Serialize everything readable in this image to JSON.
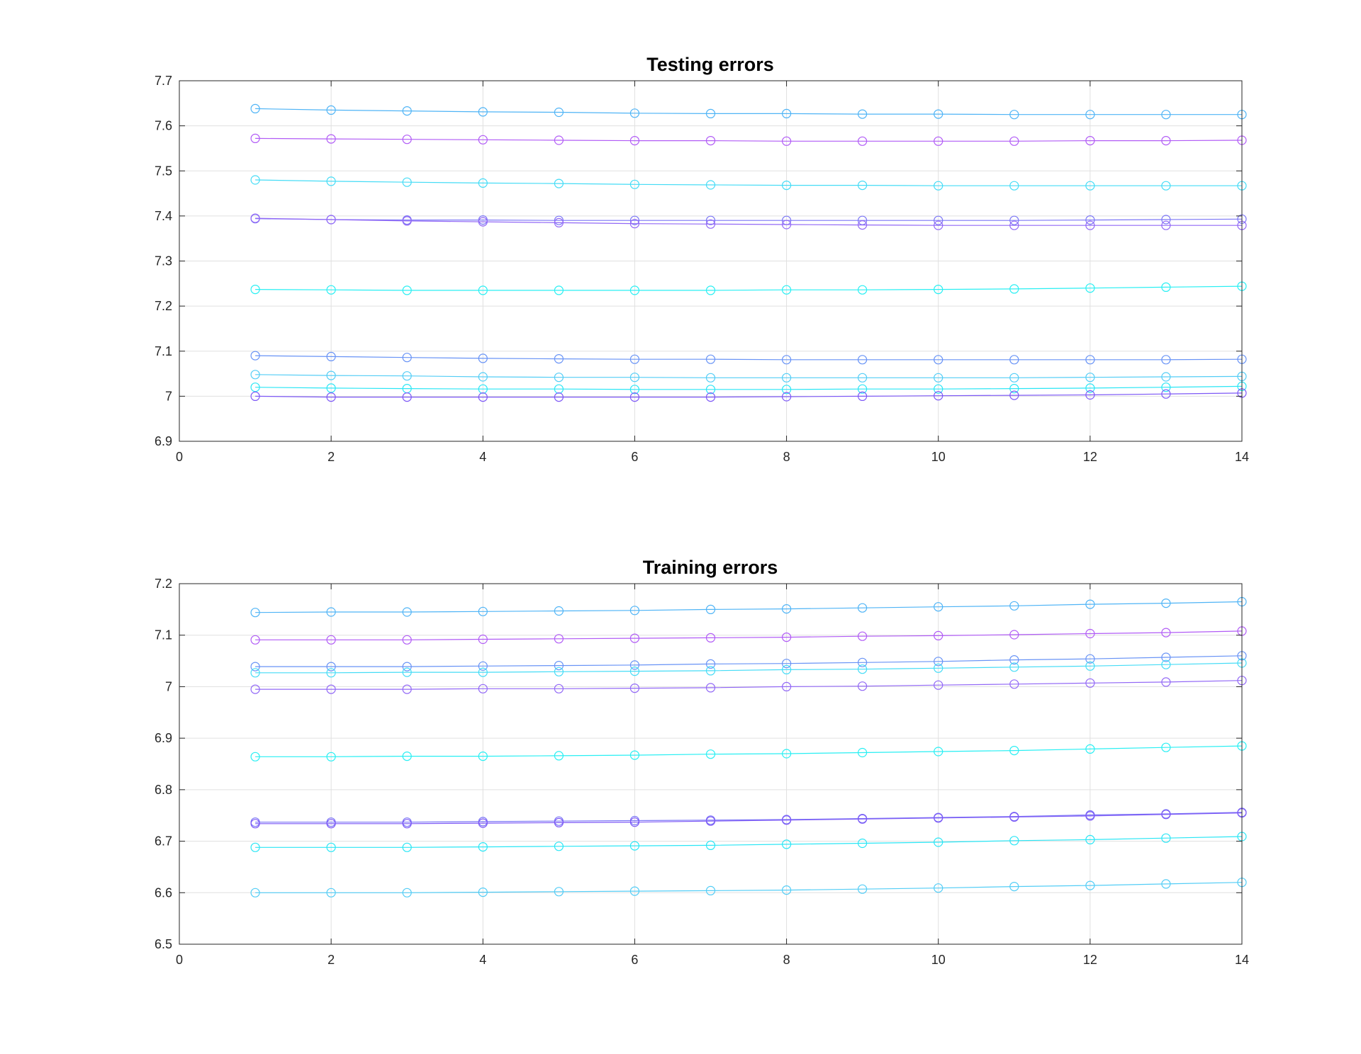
{
  "colors": {
    "background": "#ffffff",
    "axes": "#262626",
    "grid": "#e0e0e0",
    "series_colors": [
      "#4fb4f6",
      "#b15bf6",
      "#45dcf6",
      "#7b76f6",
      "#9268f6",
      "#28eff3",
      "#6893f6",
      "#53cdf6",
      "#2ae6f5",
      "#7d58f6"
    ]
  },
  "chart_data": [
    {
      "type": "line",
      "title": "Testing errors",
      "xlabel": "",
      "ylabel": "",
      "xlim": [
        0,
        14
      ],
      "ylim": [
        6.9,
        7.7
      ],
      "xticks": [
        0,
        2,
        4,
        6,
        8,
        10,
        12,
        14
      ],
      "yticks": [
        6.9,
        7,
        7.1,
        7.2,
        7.3,
        7.4,
        7.5,
        7.6,
        7.7
      ],
      "ytick_labels": [
        "6.9",
        "7",
        "7.1",
        "7.2",
        "7.3",
        "7.4",
        "7.5",
        "7.6",
        "7.7"
      ],
      "grid": true,
      "marker": "circle",
      "x": [
        1,
        2,
        3,
        4,
        5,
        6,
        7,
        8,
        9,
        10,
        11,
        12,
        13,
        14
      ],
      "series": [
        {
          "color": "#4fb4f6",
          "values": [
            7.638,
            7.635,
            7.633,
            7.631,
            7.63,
            7.628,
            7.627,
            7.627,
            7.626,
            7.626,
            7.625,
            7.625,
            7.625,
            7.625
          ]
        },
        {
          "color": "#b15bf6",
          "values": [
            7.572,
            7.571,
            7.57,
            7.569,
            7.568,
            7.567,
            7.567,
            7.566,
            7.566,
            7.566,
            7.566,
            7.567,
            7.567,
            7.568
          ]
        },
        {
          "color": "#45dcf6",
          "values": [
            7.48,
            7.477,
            7.475,
            7.473,
            7.472,
            7.47,
            7.469,
            7.468,
            7.468,
            7.467,
            7.467,
            7.467,
            7.467,
            7.467
          ]
        },
        {
          "color": "#7b76f6",
          "values": [
            7.394,
            7.392,
            7.391,
            7.391,
            7.39,
            7.39,
            7.39,
            7.39,
            7.39,
            7.39,
            7.39,
            7.391,
            7.392,
            7.393
          ]
        },
        {
          "color": "#9268f6",
          "values": [
            7.395,
            7.392,
            7.389,
            7.387,
            7.385,
            7.383,
            7.382,
            7.381,
            7.38,
            7.379,
            7.379,
            7.379,
            7.379,
            7.379
          ]
        },
        {
          "color": "#28eff3",
          "values": [
            7.237,
            7.236,
            7.235,
            7.235,
            7.235,
            7.235,
            7.235,
            7.236,
            7.236,
            7.237,
            7.238,
            7.24,
            7.242,
            7.244
          ]
        },
        {
          "color": "#6893f6",
          "values": [
            7.09,
            7.088,
            7.086,
            7.084,
            7.083,
            7.082,
            7.082,
            7.081,
            7.081,
            7.081,
            7.081,
            7.081,
            7.081,
            7.082
          ]
        },
        {
          "color": "#53cdf6",
          "values": [
            7.048,
            7.046,
            7.045,
            7.043,
            7.042,
            7.042,
            7.041,
            7.041,
            7.041,
            7.041,
            7.041,
            7.042,
            7.043,
            7.044
          ]
        },
        {
          "color": "#2ae6f5",
          "values": [
            7.02,
            7.018,
            7.017,
            7.016,
            7.016,
            7.015,
            7.015,
            7.015,
            7.016,
            7.016,
            7.017,
            7.018,
            7.02,
            7.022
          ]
        },
        {
          "color": "#7d58f6",
          "values": [
            7.0,
            6.998,
            6.998,
            6.998,
            6.998,
            6.998,
            6.998,
            6.999,
            7.0,
            7.001,
            7.002,
            7.003,
            7.005,
            7.007
          ]
        }
      ]
    },
    {
      "type": "line",
      "title": "Training errors",
      "xlabel": "",
      "ylabel": "",
      "xlim": [
        0,
        14
      ],
      "ylim": [
        6.5,
        7.2
      ],
      "xticks": [
        0,
        2,
        4,
        6,
        8,
        10,
        12,
        14
      ],
      "yticks": [
        6.5,
        6.6,
        6.7,
        6.8,
        6.9,
        7,
        7.1,
        7.2
      ],
      "ytick_labels": [
        "6.5",
        "6.6",
        "6.7",
        "6.8",
        "6.9",
        "7",
        "7.1",
        "7.2"
      ],
      "grid": true,
      "marker": "circle",
      "x": [
        1,
        2,
        3,
        4,
        5,
        6,
        7,
        8,
        9,
        10,
        11,
        12,
        13,
        14
      ],
      "series": [
        {
          "color": "#4fb4f6",
          "values": [
            7.144,
            7.145,
            7.145,
            7.146,
            7.147,
            7.148,
            7.15,
            7.151,
            7.153,
            7.155,
            7.157,
            7.16,
            7.162,
            7.165
          ]
        },
        {
          "color": "#b15bf6",
          "values": [
            7.091,
            7.091,
            7.091,
            7.092,
            7.093,
            7.094,
            7.095,
            7.096,
            7.098,
            7.099,
            7.101,
            7.103,
            7.105,
            7.108
          ]
        },
        {
          "color": "#6893f6",
          "values": [
            7.039,
            7.039,
            7.039,
            7.04,
            7.041,
            7.042,
            7.044,
            7.045,
            7.047,
            7.049,
            7.052,
            7.054,
            7.057,
            7.06
          ]
        },
        {
          "color": "#45dcf6",
          "values": [
            7.027,
            7.027,
            7.028,
            7.028,
            7.029,
            7.03,
            7.031,
            7.033,
            7.034,
            7.036,
            7.038,
            7.04,
            7.043,
            7.046
          ]
        },
        {
          "color": "#9268f6",
          "values": [
            6.995,
            6.995,
            6.995,
            6.996,
            6.996,
            6.997,
            6.998,
            7.0,
            7.001,
            7.003,
            7.005,
            7.007,
            7.009,
            7.012
          ]
        },
        {
          "color": "#28eff3",
          "values": [
            6.864,
            6.864,
            6.865,
            6.865,
            6.866,
            6.867,
            6.869,
            6.87,
            6.872,
            6.874,
            6.876,
            6.879,
            6.882,
            6.885
          ]
        },
        {
          "color": "#7b76f6",
          "values": [
            6.737,
            6.737,
            6.737,
            6.738,
            6.739,
            6.74,
            6.741,
            6.742,
            6.744,
            6.746,
            6.748,
            6.751,
            6.753,
            6.756
          ]
        },
        {
          "color": "#7d58f6",
          "values": [
            6.734,
            6.734,
            6.734,
            6.735,
            6.736,
            6.737,
            6.739,
            6.741,
            6.743,
            6.745,
            6.747,
            6.749,
            6.752,
            6.755
          ]
        },
        {
          "color": "#2ae6f5",
          "values": [
            6.688,
            6.688,
            6.688,
            6.689,
            6.69,
            6.691,
            6.692,
            6.694,
            6.696,
            6.698,
            6.701,
            6.703,
            6.706,
            6.709
          ]
        },
        {
          "color": "#53cdf6",
          "values": [
            6.6,
            6.6,
            6.6,
            6.601,
            6.602,
            6.603,
            6.604,
            6.605,
            6.607,
            6.609,
            6.612,
            6.614,
            6.617,
            6.62
          ]
        }
      ]
    }
  ]
}
